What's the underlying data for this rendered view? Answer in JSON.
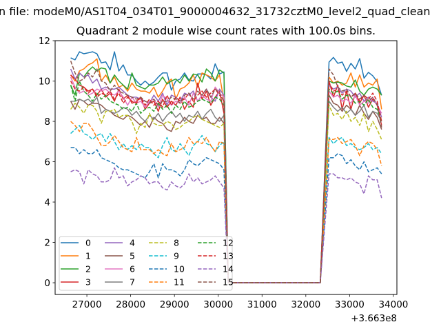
{
  "chart_data": {
    "type": "line",
    "suptitle": "n file: modeM0/AS1T04_034T01_9000004632_31732cztM0_level2_quad_clean",
    "title": "Quadrant 2 module wise count rates with 100.0s bins.",
    "xlabel": "",
    "ylabel": "",
    "x_offset_label": "+3.663e8",
    "x_start": 26630,
    "bin_width": 100,
    "xlim": [
      26275,
      34080
    ],
    "ylim": [
      -0.58,
      12
    ],
    "xticks": [
      27000,
      28000,
      29000,
      30000,
      31000,
      32000,
      33000,
      34000
    ],
    "yticks": [
      0,
      2,
      4,
      6,
      8,
      10,
      12
    ],
    "grid": false,
    "legend": {
      "placement": "lower-left",
      "columns": 4
    },
    "series": [
      {
        "name": "0",
        "color": "#1f77b4",
        "dashed": false,
        "values": [
          11.15,
          11.05,
          11.45,
          11.35,
          11.4,
          11.45,
          11.35,
          10.9,
          10.95,
          10.55,
          11.45,
          10.5,
          10.8,
          10.3,
          10.3,
          10.0,
          9.8,
          10.0,
          9.8,
          9.95,
          10.2,
          10.4,
          10.4,
          9.55,
          10.0,
          10.1,
          10.4,
          10.05,
          10.0,
          10.35,
          10.35,
          10.3,
          10.1,
          10.85,
          10.35,
          10.45,
          0,
          0,
          0,
          0,
          0,
          0,
          0,
          0,
          0,
          0,
          0,
          0,
          0,
          0,
          0,
          0,
          0,
          0,
          0,
          0,
          0,
          0,
          5.4,
          10.94,
          11.17,
          10.88,
          10.94,
          10.48,
          10.88,
          10.6,
          11.11,
          10.14,
          10.43,
          10.26,
          9.97,
          9.29
        ]
      },
      {
        "name": "1",
        "color": "#ff7f0e",
        "dashed": false,
        "values": [
          10.3,
          10.0,
          10.5,
          10.6,
          10.8,
          10.9,
          11.1,
          10.0,
          10.3,
          9.9,
          10.2,
          9.7,
          9.8,
          9.5,
          9.9,
          9.6,
          9.5,
          9.5,
          9.4,
          9.7,
          9.2,
          9.5,
          9.9,
          10.1,
          9.1,
          9.6,
          9.7,
          9.9,
          10.3,
          9.7,
          10.4,
          10.3,
          10.2,
          10.0,
          10.3,
          9.0,
          0,
          0,
          0,
          0,
          0,
          0,
          0,
          0,
          0,
          0,
          0,
          0,
          0,
          0,
          0,
          0,
          0,
          0,
          0,
          0,
          0,
          0,
          5.1,
          10.2,
          9.9,
          10.0,
          9.8,
          9.9,
          10.4,
          9.7,
          10.3,
          9.7,
          9.9,
          9.8,
          10.1,
          8.6
        ]
      },
      {
        "name": "2",
        "color": "#2ca02c",
        "dashed": false,
        "values": [
          9.8,
          9.3,
          10.4,
          10.2,
          10.5,
          10.7,
          10.5,
          10.65,
          10.6,
          9.9,
          10.3,
          10.0,
          9.8,
          9.6,
          10.4,
          9.8,
          9.7,
          9.6,
          9.8,
          9.8,
          9.9,
          10.2,
          9.85,
          10.0,
          10.1,
          9.9,
          10.3,
          10.0,
          10.35,
          10.3,
          9.95,
          10.6,
          10.4,
          10.0,
          10.55,
          10.4,
          0,
          0,
          0,
          0,
          0,
          0,
          0,
          0,
          0,
          0,
          0,
          0,
          0,
          0,
          0,
          0,
          0,
          0,
          0,
          0,
          0,
          0,
          5.0,
          10.0,
          9.9,
          9.95,
          9.9,
          9.75,
          9.7,
          10.05,
          9.5,
          9.3,
          9.6,
          9.7,
          9.6,
          9.3
        ]
      },
      {
        "name": "3",
        "color": "#d62728",
        "dashed": false,
        "values": [
          10.3,
          10.1,
          9.8,
          9.7,
          9.5,
          9.6,
          9.3,
          9.6,
          9.2,
          9.4,
          9.0,
          9.6,
          9.1,
          9.3,
          8.9,
          9.0,
          9.2,
          8.6,
          8.9,
          9.0,
          8.5,
          9.1,
          8.7,
          9.0,
          8.8,
          9.2,
          8.6,
          9.0,
          8.7,
          9.9,
          9.1,
          9.5,
          8.8,
          9.2,
          9.5,
          8.4,
          0,
          0,
          0,
          0,
          0,
          0,
          0,
          0,
          0,
          0,
          0,
          0,
          0,
          0,
          0,
          0,
          0,
          0,
          0,
          0,
          0,
          0,
          4.8,
          10.0,
          9.2,
          9.8,
          8.6,
          9.5,
          8.6,
          9.4,
          8.9,
          9.3,
          8.7,
          9.1,
          8.8,
          7.8
        ]
      },
      {
        "name": "4",
        "color": "#9467bd",
        "dashed": false,
        "values": [
          10.6,
          10.1,
          10.4,
          10.2,
          10.3,
          9.9,
          10.1,
          9.6,
          9.7,
          9.6,
          9.6,
          9.7,
          9.5,
          9.3,
          9.2,
          9.2,
          9.1,
          9.0,
          8.9,
          9.3,
          9.0,
          9.4,
          8.8,
          9.3,
          9.2,
          9.0,
          9.4,
          9.3,
          9.5,
          9.0,
          9.3,
          9.6,
          9.2,
          9.0,
          9.6,
          9.3,
          0,
          0,
          0,
          0,
          0,
          0,
          0,
          0,
          0,
          0,
          0,
          0,
          0,
          0,
          0,
          0,
          0,
          0,
          0,
          0,
          0,
          0,
          5.0,
          9.8,
          9.6,
          9.7,
          9.4,
          9.6,
          9.5,
          9.2,
          9.4,
          9.0,
          9.2,
          9.0,
          8.9,
          8.2
        ]
      },
      {
        "name": "5",
        "color": "#8c564b",
        "dashed": false,
        "values": [
          9.0,
          8.6,
          9.1,
          9.0,
          8.8,
          8.9,
          8.9,
          8.8,
          8.6,
          8.5,
          8.3,
          8.2,
          8.1,
          8.3,
          8.2,
          8.0,
          7.8,
          8.0,
          7.7,
          8.2,
          8.0,
          7.9,
          7.6,
          7.5,
          8.0,
          7.9,
          8.2,
          8.0,
          7.9,
          8.3,
          8.1,
          8.2,
          7.9,
          7.9,
          8.2,
          7.9,
          0,
          0,
          0,
          0,
          0,
          0,
          0,
          0,
          0,
          0,
          0,
          0,
          0,
          0,
          0,
          0,
          0,
          0,
          0,
          0,
          0,
          0,
          4.7,
          9.3,
          8.9,
          8.8,
          8.5,
          8.8,
          8.6,
          8.3,
          8.8,
          8.4,
          8.1,
          8.5,
          8.2,
          7.6
        ]
      },
      {
        "name": "6",
        "color": "#e377c2",
        "dashed": false,
        "values": [
          10.2,
          9.7,
          9.4,
          9.5,
          9.3,
          9.4,
          9.6,
          9.5,
          9.6,
          9.4,
          9.3,
          9.5,
          9.2,
          8.8,
          9.2,
          8.9,
          9.0,
          8.7,
          9.0,
          9.1,
          8.7,
          9.3,
          9.1,
          8.8,
          9.0,
          8.9,
          9.2,
          8.8,
          9.4,
          9.0,
          9.3,
          9.1,
          9.0,
          9.7,
          9.4,
          9.2,
          0,
          0,
          0,
          0,
          0,
          0,
          0,
          0,
          0,
          0,
          0,
          0,
          0,
          0,
          0,
          0,
          0,
          0,
          0,
          0,
          0,
          0,
          5.0,
          9.5,
          9.2,
          9.3,
          9.0,
          9.1,
          8.9,
          9.3,
          8.8,
          9.0,
          8.9,
          9.2,
          8.8,
          8.4
        ]
      },
      {
        "name": "7",
        "color": "#7f7f7f",
        "dashed": false,
        "values": [
          9.0,
          9.0,
          9.1,
          9.0,
          9.1,
          8.9,
          9.2,
          8.4,
          8.6,
          8.5,
          8.4,
          8.5,
          8.7,
          8.6,
          8.3,
          8.5,
          8.2,
          8.0,
          8.3,
          8.1,
          8.4,
          8.0,
          8.3,
          8.5,
          8.2,
          8.4,
          8.0,
          8.3,
          8.2,
          8.5,
          8.1,
          8.4,
          8.6,
          8.2,
          8.0,
          8.3,
          0,
          0,
          0,
          0,
          0,
          0,
          0,
          0,
          0,
          0,
          0,
          0,
          0,
          0,
          0,
          0,
          0,
          0,
          0,
          0,
          0,
          0,
          4.5,
          9.0,
          8.7,
          8.5,
          8.7,
          8.4,
          8.6,
          8.3,
          8.5,
          8.8,
          8.2,
          8.5,
          8.4,
          8.0
        ]
      },
      {
        "name": "8",
        "color": "#bcbd22",
        "dashed": true,
        "values": [
          8.6,
          8.9,
          8.7,
          8.4,
          8.8,
          8.8,
          8.5,
          7.9,
          8.5,
          8.5,
          8.6,
          8.2,
          8.3,
          8.3,
          8.0,
          7.4,
          7.9,
          7.7,
          8.4,
          7.9,
          7.8,
          7.8,
          8.0,
          7.9,
          7.6,
          7.7,
          7.9,
          8.0,
          8.2,
          8.3,
          8.1,
          8.0,
          7.9,
          7.8,
          7.7,
          7.9,
          0,
          0,
          0,
          0,
          0,
          0,
          0,
          0,
          0,
          0,
          0,
          0,
          0,
          0,
          0,
          0,
          0,
          0,
          0,
          0,
          0,
          0,
          4.3,
          8.8,
          8.3,
          8.4,
          8.1,
          8.5,
          8.0,
          8.2,
          7.8,
          8.4,
          7.5,
          8.0,
          7.6,
          7.1
        ]
      },
      {
        "name": "9",
        "color": "#17becf",
        "dashed": true,
        "values": [
          7.4,
          7.6,
          7.8,
          7.4,
          7.3,
          7.1,
          7.3,
          7.4,
          7.0,
          7.4,
          7.0,
          6.6,
          6.9,
          6.6,
          6.8,
          6.6,
          6.9,
          6.7,
          6.7,
          6.4,
          6.2,
          6.8,
          7.2,
          6.6,
          6.5,
          6.9,
          6.6,
          6.3,
          6.8,
          7.0,
          7.3,
          6.9,
          6.8,
          6.5,
          6.8,
          7.0,
          0,
          0,
          0,
          0,
          0,
          0,
          0,
          0,
          0,
          0,
          0,
          0,
          0,
          0,
          0,
          0,
          0,
          0,
          0,
          0,
          0,
          0,
          3.7,
          7.2,
          6.9,
          7.1,
          7.2,
          6.8,
          6.9,
          6.7,
          6.6,
          6.7,
          6.9,
          6.6,
          6.7,
          6.4
        ]
      },
      {
        "name": "10",
        "color": "#1f77b4",
        "dashed": true,
        "values": [
          6.7,
          6.7,
          6.4,
          6.6,
          6.4,
          6.4,
          6.6,
          6.2,
          6.1,
          6.0,
          5.9,
          5.7,
          5.6,
          5.6,
          5.5,
          5.4,
          5.3,
          5.2,
          5.5,
          5.9,
          5.2,
          5.9,
          5.6,
          5.6,
          5.5,
          5.3,
          5.6,
          6.1,
          5.9,
          5.8,
          6.0,
          6.2,
          6.1,
          6.0,
          5.9,
          5.6,
          0,
          0,
          0,
          0,
          0,
          0,
          0,
          0,
          0,
          0,
          0,
          0,
          0,
          0,
          0,
          0,
          0,
          0,
          0,
          0,
          0,
          0,
          3.1,
          6.2,
          6.2,
          6.4,
          6.3,
          5.9,
          6.1,
          5.8,
          5.6,
          6.0,
          5.5,
          5.6,
          5.7,
          5.4
        ]
      },
      {
        "name": "11",
        "color": "#ff7f0e",
        "dashed": true,
        "values": [
          8.0,
          7.8,
          7.5,
          7.9,
          7.9,
          7.6,
          7.2,
          6.8,
          6.8,
          7.0,
          7.3,
          7.0,
          6.7,
          6.6,
          6.5,
          7.2,
          6.6,
          6.6,
          6.6,
          6.4,
          6.6,
          6.4,
          6.3,
          6.9,
          6.5,
          6.6,
          6.7,
          7.2,
          6.9,
          7.0,
          6.9,
          7.2,
          6.8,
          6.5,
          7.0,
          6.9,
          0,
          0,
          0,
          0,
          0,
          0,
          0,
          0,
          0,
          0,
          0,
          0,
          0,
          0,
          0,
          0,
          0,
          0,
          0,
          0,
          0,
          0,
          3.6,
          7.1,
          7.1,
          7.2,
          6.9,
          7.0,
          7.1,
          6.8,
          6.3,
          6.8,
          7.0,
          6.9,
          6.6,
          5.8
        ]
      },
      {
        "name": "12",
        "color": "#2ca02c",
        "dashed": true,
        "values": [
          9.8,
          9.0,
          10.0,
          9.5,
          9.3,
          9.0,
          9.4,
          9.1,
          9.3,
          9.0,
          8.9,
          8.8,
          8.6,
          8.7,
          8.5,
          8.9,
          8.4,
          8.6,
          8.7,
          8.5,
          8.9,
          8.6,
          8.8,
          8.4,
          8.8,
          8.6,
          9.0,
          8.7,
          8.8,
          9.0,
          9.1,
          9.0,
          8.9,
          9.2,
          9.1,
          8.8,
          0,
          0,
          0,
          0,
          0,
          0,
          0,
          0,
          0,
          0,
          0,
          0,
          0,
          0,
          0,
          0,
          0,
          0,
          0,
          0,
          0,
          0,
          4.9,
          9.6,
          9.4,
          9.5,
          9.1,
          9.3,
          9.2,
          8.9,
          9.0,
          8.8,
          9.1,
          8.7,
          8.6,
          8.0
        ]
      },
      {
        "name": "13",
        "color": "#d62728",
        "dashed": true,
        "values": [
          10.0,
          9.6,
          9.5,
          9.7,
          9.4,
          9.6,
          9.2,
          9.4,
          9.3,
          9.5,
          9.1,
          9.4,
          8.9,
          9.2,
          9.0,
          8.9,
          9.2,
          8.8,
          9.1,
          8.8,
          9.0,
          8.7,
          9.3,
          8.8,
          9.2,
          9.0,
          9.1,
          9.4,
          9.0,
          9.3,
          9.5,
          9.2,
          9.4,
          9.6,
          9.3,
          9.0,
          0,
          0,
          0,
          0,
          0,
          0,
          0,
          0,
          0,
          0,
          0,
          0,
          0,
          0,
          0,
          0,
          0,
          0,
          0,
          0,
          0,
          0,
          5.1,
          9.9,
          9.5,
          9.6,
          9.3,
          9.5,
          9.2,
          9.4,
          9.0,
          9.3,
          9.1,
          9.4,
          9.0,
          8.0
        ]
      },
      {
        "name": "14",
        "color": "#9467bd",
        "dashed": true,
        "values": [
          5.5,
          5.6,
          5.5,
          4.9,
          5.6,
          5.4,
          5.3,
          5.0,
          5.0,
          5.1,
          5.7,
          5.2,
          5.3,
          4.8,
          5.0,
          5.1,
          5.3,
          5.2,
          4.9,
          5.0,
          5.0,
          4.7,
          4.6,
          5.0,
          4.8,
          4.7,
          4.9,
          5.4,
          5.0,
          5.2,
          4.9,
          5.0,
          5.1,
          5.3,
          5.0,
          4.7,
          0,
          0,
          0,
          0,
          0,
          0,
          0,
          0,
          0,
          0,
          0,
          0,
          0,
          0,
          0,
          0,
          0,
          0,
          0,
          0,
          0,
          0,
          2.7,
          5.4,
          5.4,
          5.2,
          5.2,
          5.1,
          5.2,
          5.0,
          4.9,
          4.4,
          5.3,
          5.1,
          5.1,
          4.2
        ]
      },
      {
        "name": "15",
        "color": "#8c564b",
        "dashed": true,
        "values": [
          11.0,
          10.4,
          10.0,
          10.1,
          10.4,
          10.2,
          10.6,
          10.0,
          9.9,
          9.5,
          9.8,
          9.5,
          9.4,
          9.3,
          9.2,
          9.1,
          9.2,
          9.0,
          8.9,
          9.1,
          8.8,
          9.0,
          9.0,
          9.2,
          9.1,
          8.9,
          9.3,
          9.4,
          9.1,
          9.5,
          9.3,
          9.6,
          9.2,
          9.6,
          9.4,
          9.0,
          0,
          0,
          0,
          0,
          0,
          0,
          0,
          0,
          0,
          0,
          0,
          0,
          0,
          0,
          0,
          0,
          0,
          0,
          0,
          0,
          0,
          0,
          5.3,
          10.6,
          10.3,
          9.7,
          9.5,
          9.6,
          9.2,
          9.4,
          9.1,
          9.3,
          9.0,
          9.2,
          8.8,
          7.7
        ]
      }
    ]
  }
}
